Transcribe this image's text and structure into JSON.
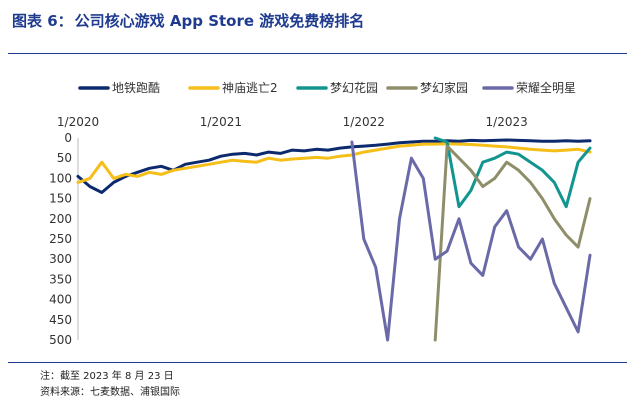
{
  "header": {
    "figure_label": "图表 6：",
    "title": "公司核心游戏 App Store 游戏免费榜排名"
  },
  "notes": {
    "note": "注：截至 2023 年 8 月 23 日",
    "source": "资料来源：七麦数据、浦银国际"
  },
  "chart_data": {
    "type": "line",
    "title": "公司核心游戏 App Store 游戏免费榜排名",
    "xlabel": "",
    "ylabel": "",
    "x_axis": "date",
    "x_range": [
      "2020-01",
      "2023-08"
    ],
    "x_ticks": [
      {
        "date": "2020-01",
        "label": "1/2020"
      },
      {
        "date": "2021-01",
        "label": "1/2021"
      },
      {
        "date": "2022-01",
        "label": "1/2022"
      },
      {
        "date": "2023-01",
        "label": "1/2023"
      }
    ],
    "y_inverted": true,
    "ylim": [
      0,
      500
    ],
    "y_ticks": [
      0,
      50,
      100,
      150,
      200,
      250,
      300,
      350,
      400,
      450,
      500
    ],
    "grid": false,
    "legend_position": "top",
    "series": [
      {
        "name": "地铁跑酷",
        "color": "#0d2a6e",
        "points": [
          [
            "2020-01",
            95
          ],
          [
            "2020-02",
            120
          ],
          [
            "2020-03",
            135
          ],
          [
            "2020-04",
            110
          ],
          [
            "2020-05",
            95
          ],
          [
            "2020-06",
            85
          ],
          [
            "2020-07",
            75
          ],
          [
            "2020-08",
            70
          ],
          [
            "2020-09",
            80
          ],
          [
            "2020-10",
            65
          ],
          [
            "2020-11",
            60
          ],
          [
            "2020-12",
            55
          ],
          [
            "2021-01",
            45
          ],
          [
            "2021-02",
            40
          ],
          [
            "2021-03",
            38
          ],
          [
            "2021-04",
            42
          ],
          [
            "2021-05",
            35
          ],
          [
            "2021-06",
            38
          ],
          [
            "2021-07",
            30
          ],
          [
            "2021-08",
            32
          ],
          [
            "2021-09",
            28
          ],
          [
            "2021-10",
            30
          ],
          [
            "2021-11",
            25
          ],
          [
            "2021-12",
            22
          ],
          [
            "2022-01",
            20
          ],
          [
            "2022-02",
            18
          ],
          [
            "2022-03",
            15
          ],
          [
            "2022-04",
            12
          ],
          [
            "2022-05",
            10
          ],
          [
            "2022-06",
            8
          ],
          [
            "2022-07",
            8
          ],
          [
            "2022-08",
            7
          ],
          [
            "2022-09",
            8
          ],
          [
            "2022-10",
            6
          ],
          [
            "2022-11",
            7
          ],
          [
            "2022-12",
            6
          ],
          [
            "2023-01",
            5
          ],
          [
            "2023-02",
            6
          ],
          [
            "2023-03",
            7
          ],
          [
            "2023-04",
            8
          ],
          [
            "2023-05",
            8
          ],
          [
            "2023-06",
            7
          ],
          [
            "2023-07",
            8
          ],
          [
            "2023-08",
            7
          ]
        ]
      },
      {
        "name": "神庙逃亡2",
        "color": "#f5be18",
        "points": [
          [
            "2020-01",
            110
          ],
          [
            "2020-02",
            100
          ],
          [
            "2020-03",
            60
          ],
          [
            "2020-04",
            100
          ],
          [
            "2020-05",
            90
          ],
          [
            "2020-06",
            95
          ],
          [
            "2020-07",
            85
          ],
          [
            "2020-08",
            90
          ],
          [
            "2020-09",
            80
          ],
          [
            "2020-10",
            75
          ],
          [
            "2020-11",
            70
          ],
          [
            "2020-12",
            65
          ],
          [
            "2021-01",
            60
          ],
          [
            "2021-02",
            55
          ],
          [
            "2021-03",
            58
          ],
          [
            "2021-04",
            60
          ],
          [
            "2021-05",
            50
          ],
          [
            "2021-06",
            55
          ],
          [
            "2021-07",
            52
          ],
          [
            "2021-08",
            50
          ],
          [
            "2021-09",
            48
          ],
          [
            "2021-10",
            50
          ],
          [
            "2021-11",
            45
          ],
          [
            "2021-12",
            42
          ],
          [
            "2022-01",
            35
          ],
          [
            "2022-02",
            30
          ],
          [
            "2022-03",
            25
          ],
          [
            "2022-04",
            20
          ],
          [
            "2022-05",
            18
          ],
          [
            "2022-06",
            15
          ],
          [
            "2022-07",
            15
          ],
          [
            "2022-08",
            14
          ],
          [
            "2022-09",
            15
          ],
          [
            "2022-10",
            16
          ],
          [
            "2022-11",
            18
          ],
          [
            "2022-12",
            20
          ],
          [
            "2023-01",
            22
          ],
          [
            "2023-02",
            25
          ],
          [
            "2023-03",
            28
          ],
          [
            "2023-04",
            30
          ],
          [
            "2023-05",
            32
          ],
          [
            "2023-06",
            30
          ],
          [
            "2023-07",
            28
          ],
          [
            "2023-08",
            35
          ]
        ]
      },
      {
        "name": "梦幻花园",
        "color": "#12958f",
        "points": [
          [
            "2022-07",
            0
          ],
          [
            "2022-08",
            10
          ],
          [
            "2022-09",
            170
          ],
          [
            "2022-10",
            130
          ],
          [
            "2022-11",
            60
          ],
          [
            "2022-12",
            50
          ],
          [
            "2023-01",
            35
          ],
          [
            "2023-02",
            40
          ],
          [
            "2023-03",
            60
          ],
          [
            "2023-04",
            80
          ],
          [
            "2023-05",
            110
          ],
          [
            "2023-06",
            170
          ],
          [
            "2023-07",
            60
          ],
          [
            "2023-08",
            25
          ]
        ]
      },
      {
        "name": "梦幻家园",
        "color": "#8f8e6a",
        "points": [
          [
            "2022-07",
            500
          ],
          [
            "2022-08",
            20
          ],
          [
            "2022-09",
            50
          ],
          [
            "2022-10",
            80
          ],
          [
            "2022-11",
            120
          ],
          [
            "2022-12",
            100
          ],
          [
            "2023-01",
            60
          ],
          [
            "2023-02",
            80
          ],
          [
            "2023-03",
            110
          ],
          [
            "2023-04",
            150
          ],
          [
            "2023-05",
            200
          ],
          [
            "2023-06",
            240
          ],
          [
            "2023-07",
            270
          ],
          [
            "2023-08",
            150
          ]
        ]
      },
      {
        "name": "荣耀全明星",
        "color": "#6a6aa8",
        "points": [
          [
            "2021-12",
            10
          ],
          [
            "2022-01",
            250
          ],
          [
            "2022-02",
            320
          ],
          [
            "2022-03",
            500
          ],
          [
            "2022-04",
            200
          ],
          [
            "2022-05",
            50
          ],
          [
            "2022-06",
            100
          ],
          [
            "2022-07",
            300
          ],
          [
            "2022-08",
            280
          ],
          [
            "2022-09",
            200
          ],
          [
            "2022-10",
            310
          ],
          [
            "2022-11",
            340
          ],
          [
            "2022-12",
            220
          ],
          [
            "2023-01",
            180
          ],
          [
            "2023-02",
            270
          ],
          [
            "2023-03",
            300
          ],
          [
            "2023-04",
            250
          ],
          [
            "2023-05",
            360
          ],
          [
            "2023-06",
            420
          ],
          [
            "2023-07",
            480
          ],
          [
            "2023-08",
            290
          ]
        ]
      }
    ]
  }
}
